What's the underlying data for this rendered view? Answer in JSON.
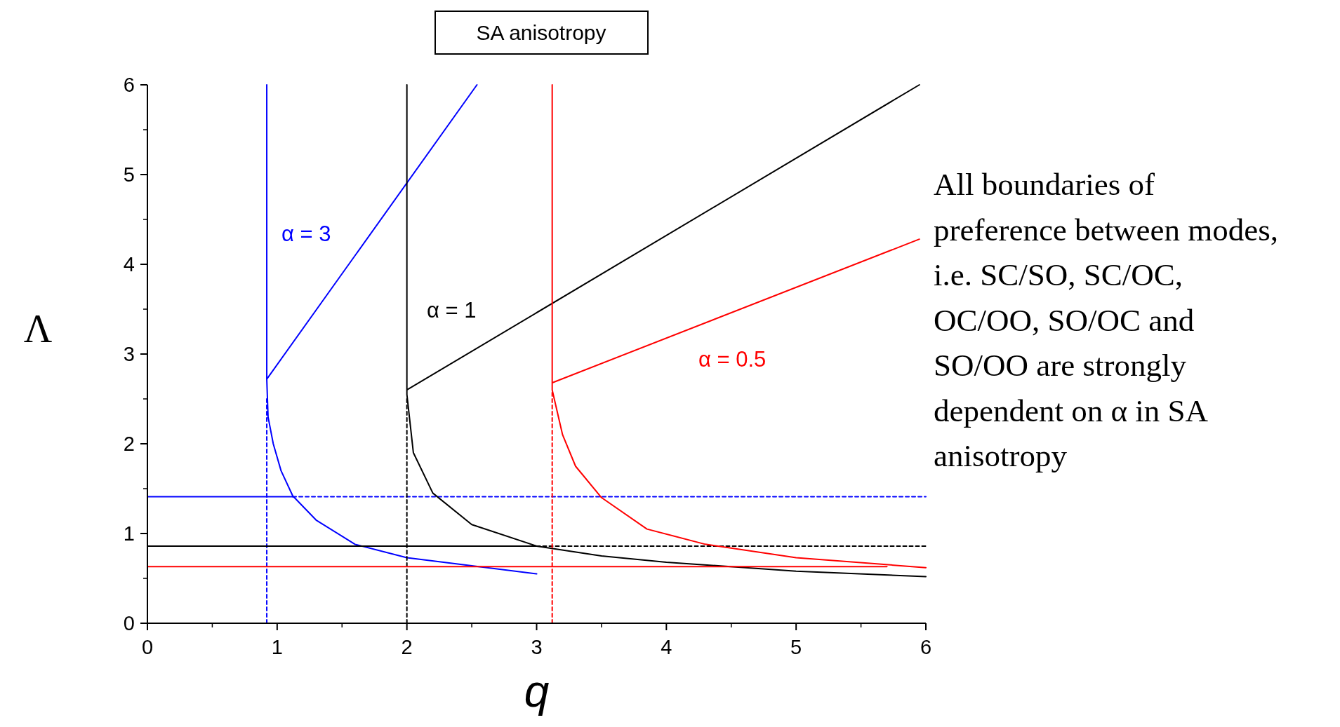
{
  "chart_data": {
    "type": "line",
    "title": "SA anisotropy",
    "xlabel": "q",
    "ylabel": "Λ",
    "xlim": [
      0,
      6
    ],
    "ylim": [
      0,
      6
    ],
    "xticks": [
      0,
      1,
      2,
      3,
      4,
      5,
      6
    ],
    "yticks": [
      0,
      1,
      2,
      3,
      4,
      5,
      6
    ],
    "grid": false,
    "line_style": "solid",
    "series": [
      {
        "color": "#0000ff",
        "x": [
          0.92,
          0.92,
          0.93,
          0.97,
          1.03,
          1.12,
          1.3,
          1.6,
          2.0,
          2.5,
          3.0,
          null,
          0.92,
          2.54,
          null,
          0,
          1.12
        ],
        "values": [
          6,
          2.72,
          2.3,
          2.0,
          1.7,
          1.42,
          1.15,
          0.88,
          0.73,
          0.64,
          0.55,
          null,
          2.72,
          6,
          null,
          1.41,
          1.41
        ]
      },
      {
        "color": "#0000ff",
        "line_style": "dashed",
        "x": [
          1.12,
          6,
          null,
          0.92,
          0.92
        ],
        "values": [
          1.41,
          1.41,
          null,
          0,
          2.5
        ]
      },
      {
        "color": "#000000",
        "x": [
          2,
          2,
          2.05,
          2.2,
          2.5,
          3.0,
          3.5,
          4,
          5,
          6,
          null,
          2,
          5.95,
          null,
          0,
          3.0
        ],
        "values": [
          6,
          2.55,
          1.9,
          1.45,
          1.1,
          0.86,
          0.75,
          0.68,
          0.58,
          0.52,
          null,
          2.6,
          6,
          null,
          0.86,
          0.86
        ]
      },
      {
        "color": "#000000",
        "line_style": "dashed",
        "x": [
          3.0,
          6,
          null,
          2,
          2
        ],
        "values": [
          0.86,
          0.86,
          null,
          0,
          2.5
        ]
      },
      {
        "color": "#ff0000",
        "x": [
          3.12,
          3.12,
          3.2,
          3.3,
          3.5,
          3.85,
          4.3,
          5,
          6,
          null,
          3.12,
          5.95,
          null,
          0,
          5.7
        ],
        "values": [
          6,
          2.6,
          2.1,
          1.75,
          1.4,
          1.05,
          0.88,
          0.73,
          0.62,
          null,
          2.68,
          4.28,
          null,
          0.63,
          0.63
        ]
      },
      {
        "color": "#ff0000",
        "line_style": "dashed",
        "x": [
          3.12,
          3.12
        ],
        "values": [
          0,
          2.6
        ]
      }
    ],
    "annotations": [
      "α = 3",
      "α = 1",
      "α = 0.5",
      "All boundaries of\npreference between modes,\ni.e. SC/SO, SC/OC,\nOC/OO, SO/OC and\nSO/OO are strongly\ndependent on α in SA\nanisotropy"
    ]
  }
}
